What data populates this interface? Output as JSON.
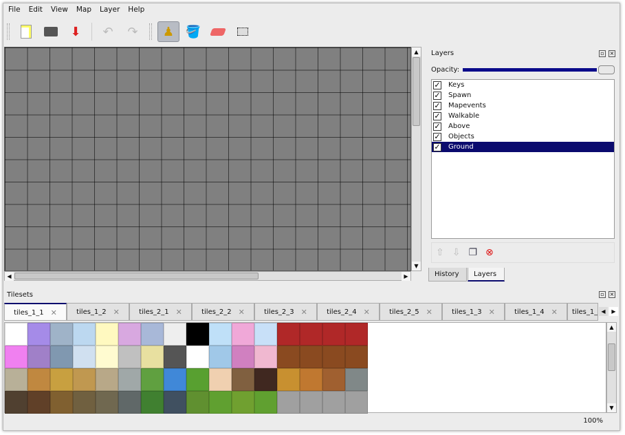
{
  "menu": [
    "File",
    "Edit",
    "View",
    "Map",
    "Layer",
    "Help"
  ],
  "toolbar": {
    "icons": [
      "new-icon",
      "open-icon",
      "save-icon",
      "undo-icon",
      "redo-icon",
      "stamp-brush-icon",
      "bucket-fill-icon",
      "eraser-icon",
      "rect-select-icon"
    ],
    "active": "stamp-brush-icon"
  },
  "layers_panel": {
    "title": "Layers",
    "opacity_label": "Opacity:",
    "opacity": 1.0,
    "layers": [
      {
        "name": "Keys",
        "visible": true
      },
      {
        "name": "Spawn",
        "visible": true
      },
      {
        "name": "Mapevents",
        "visible": true
      },
      {
        "name": "Walkable",
        "visible": true
      },
      {
        "name": "Above",
        "visible": true
      },
      {
        "name": "Objects",
        "visible": true
      },
      {
        "name": "Ground",
        "visible": true,
        "selected": true
      }
    ],
    "tabs": [
      "History",
      "Layers"
    ],
    "active_tab": "Layers"
  },
  "tilesets": {
    "title": "Tilesets",
    "tabs": [
      "tiles_1_1",
      "tiles_1_2",
      "tiles_2_1",
      "tiles_2_2",
      "tiles_2_3",
      "tiles_2_4",
      "tiles_2_5",
      "tiles_1_3",
      "tiles_1_4",
      "tiles_1_"
    ],
    "active": "tiles_1_1"
  },
  "status": {
    "zoom": "100%"
  },
  "colors": {
    "selection": "#0a0a6e",
    "map_bg": "#808080"
  }
}
